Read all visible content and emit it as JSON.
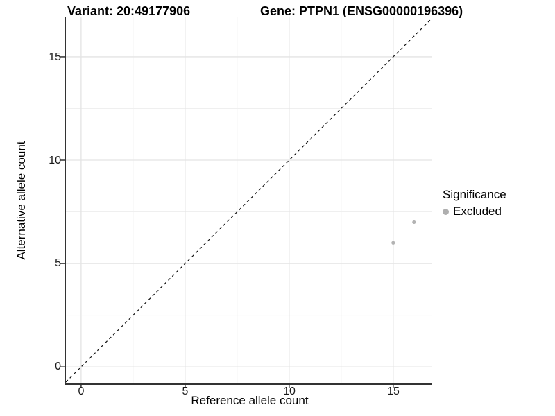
{
  "titles": {
    "variant": "Variant: 20:49177906",
    "gene": "Gene: PTPN1 (ENSG00000196396)"
  },
  "axes": {
    "x": {
      "label": "Reference allele count",
      "ticks": [
        "0",
        "5",
        "10",
        "15"
      ],
      "tick_values": [
        0,
        5,
        10,
        15
      ]
    },
    "y": {
      "label": "Alternative allele count",
      "ticks": [
        "0",
        "5",
        "10",
        "15"
      ],
      "tick_values": [
        0,
        5,
        10,
        15
      ]
    }
  },
  "legend": {
    "title": "Significance",
    "items": [
      {
        "label": "Excluded",
        "color": "#afafaf"
      }
    ]
  },
  "chart_data": {
    "type": "scatter",
    "title": "Variant: 20:49177906 | Gene: PTPN1 (ENSG00000196396)",
    "xlabel": "Reference allele count",
    "ylabel": "Alternative allele count",
    "xlim": [
      -0.73,
      16.84
    ],
    "ylim": [
      -0.8,
      16.91
    ],
    "x_major_ticks": [
      0,
      5,
      10,
      15
    ],
    "y_major_ticks": [
      0,
      5,
      10,
      15
    ],
    "x_minor_ticks": [
      2.5,
      7.5,
      12.5
    ],
    "y_minor_ticks": [
      2.5,
      7.5,
      12.5
    ],
    "grid": true,
    "legend_position": "right",
    "series": [
      {
        "name": "Excluded",
        "color": "#b3b3b3",
        "points": [
          {
            "x": 15,
            "y": 6
          },
          {
            "x": 16,
            "y": 7
          }
        ]
      }
    ],
    "reference_line": {
      "type": "identity",
      "slope": 1,
      "intercept": 0,
      "style": "dashed",
      "color": "#111111"
    }
  },
  "style_colors": {
    "grid_major": "#e4e4e4",
    "grid_minor": "#efefef",
    "axis_line": "#333333",
    "tick_mark": "#333333"
  }
}
